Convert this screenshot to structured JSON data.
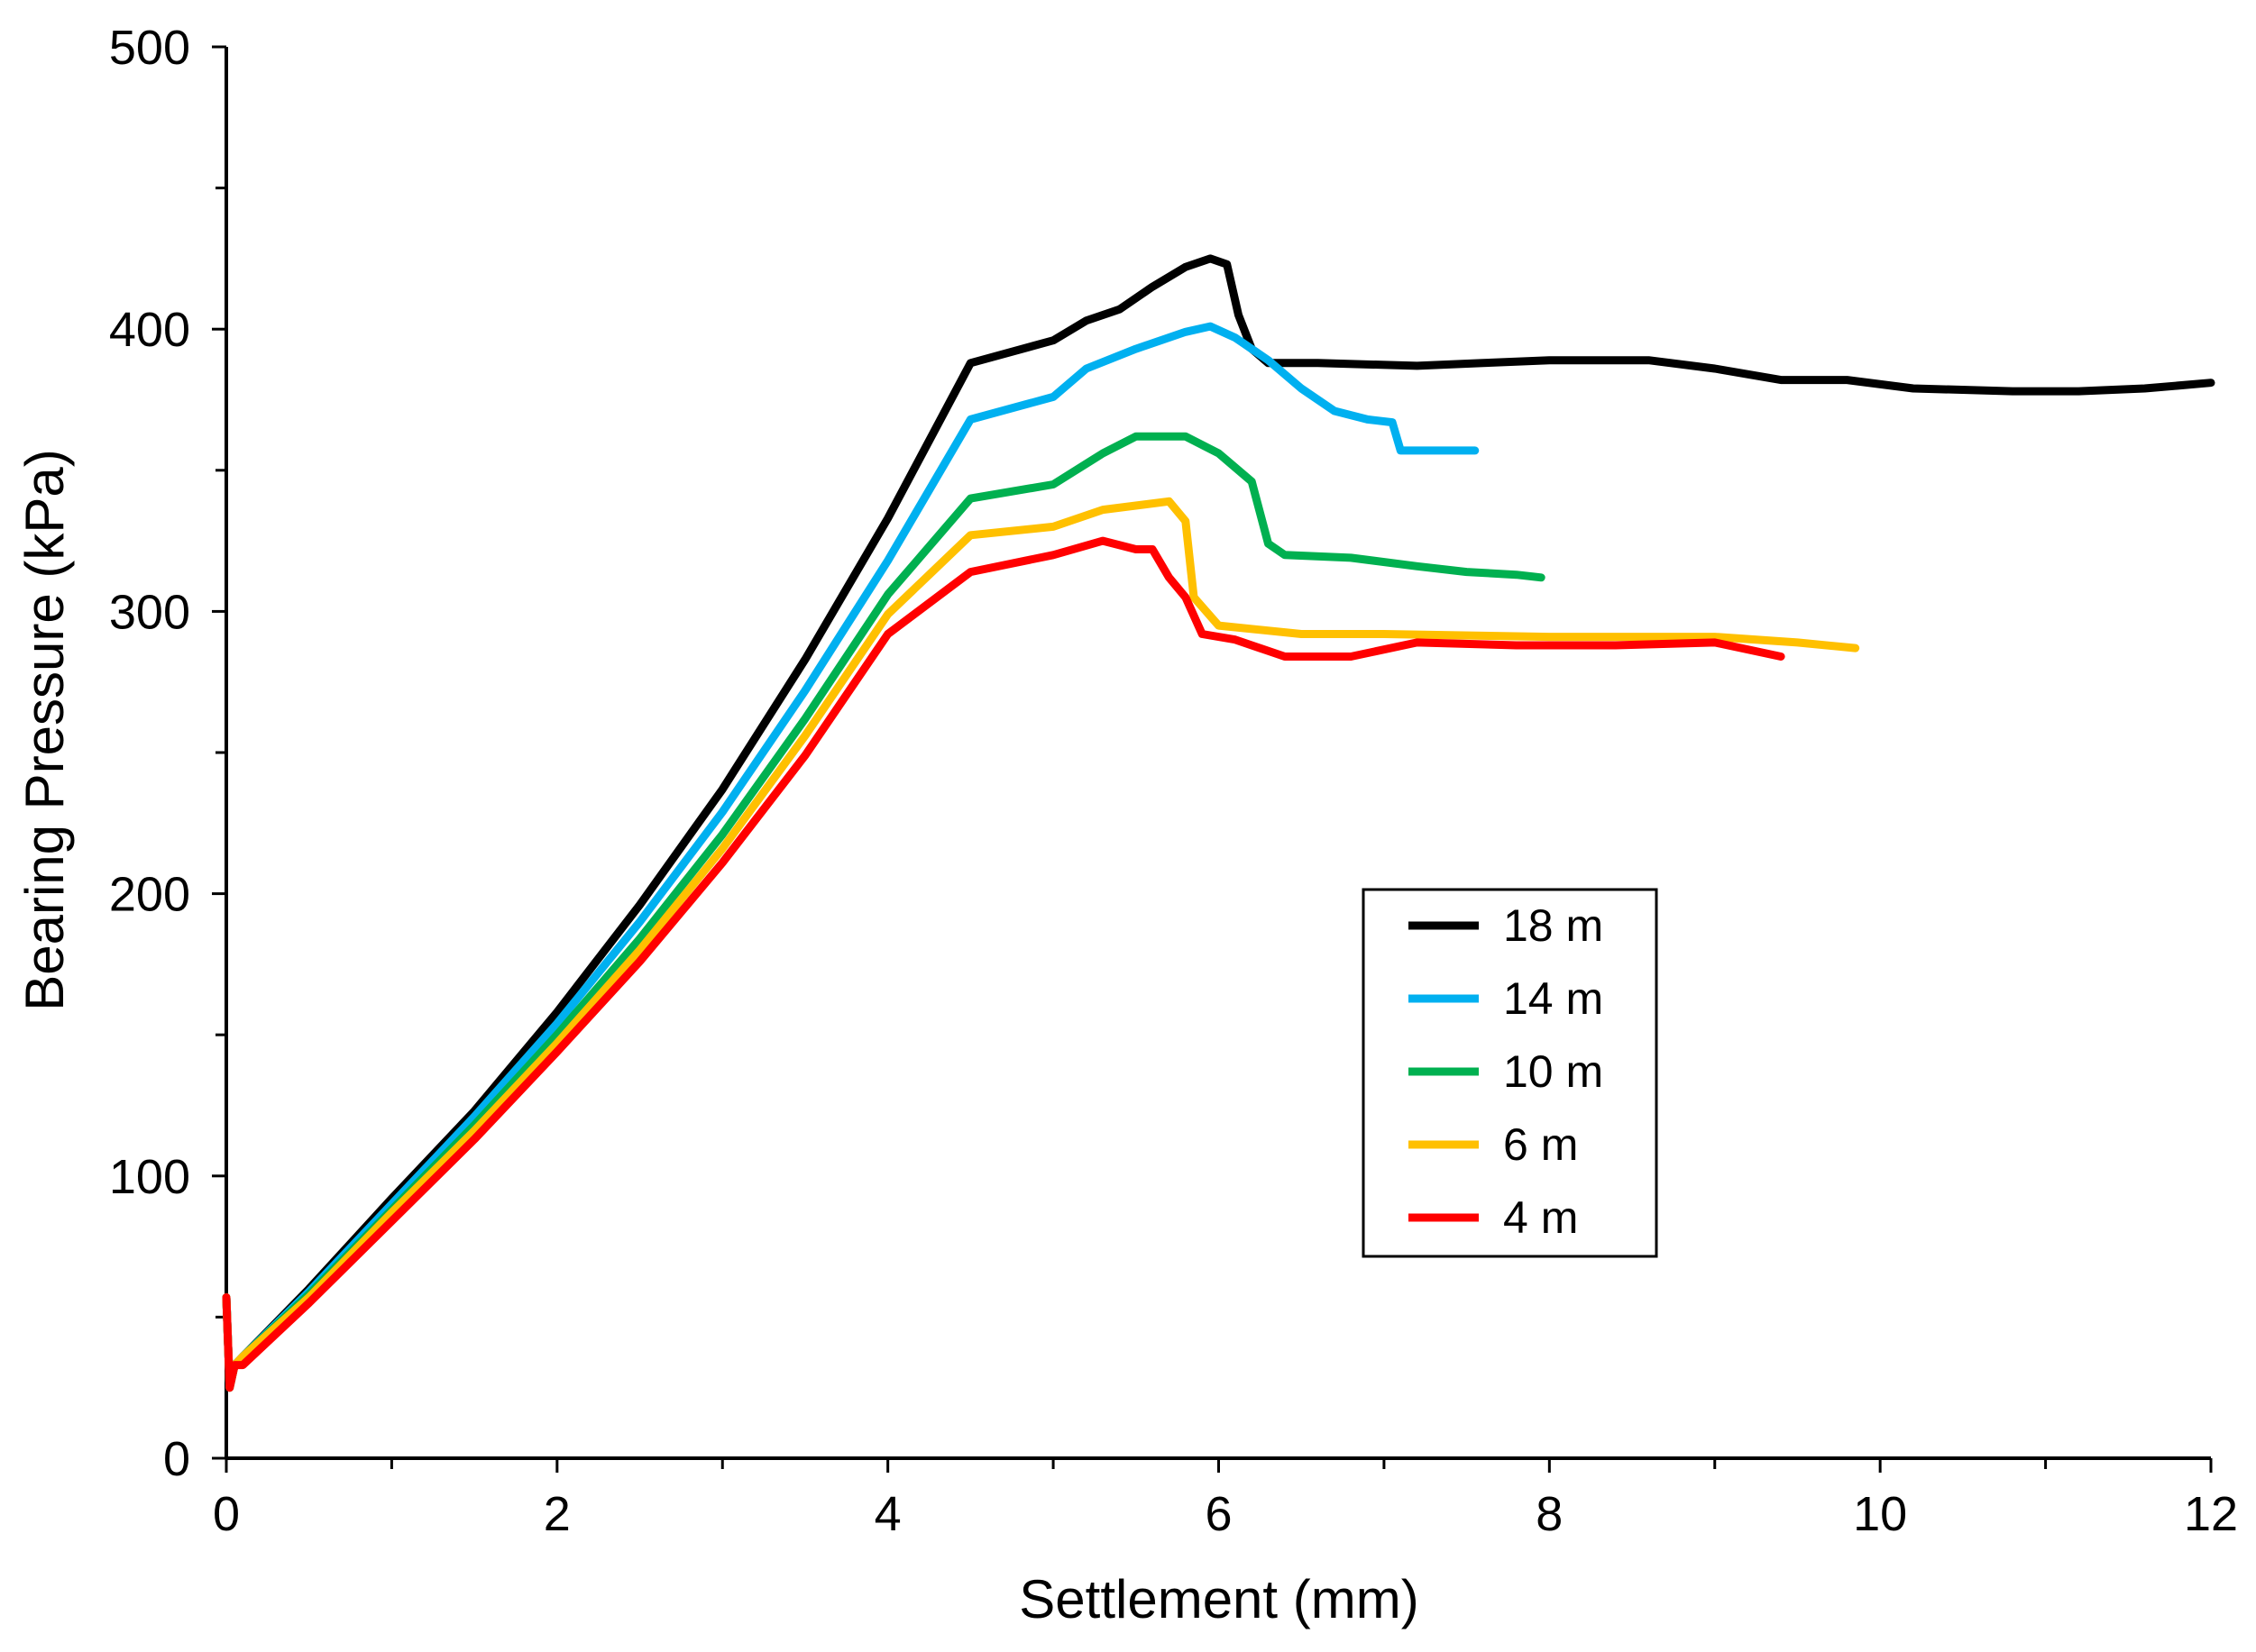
{
  "chart_data": {
    "type": "line",
    "title": "",
    "xlabel": "Settlement (mm)",
    "ylabel": "Bearing Pressure (kPa)",
    "xlim": [
      0,
      12
    ],
    "ylim": [
      0,
      500
    ],
    "xticks": [
      0,
      2,
      4,
      6,
      8,
      10,
      12
    ],
    "yticks": [
      0,
      100,
      200,
      300,
      400,
      500
    ],
    "x_minor_step": 1,
    "y_minor_step": 50,
    "grid": false,
    "legend_position": "center-right",
    "series": [
      {
        "name": "18 m",
        "color": "#000000",
        "points": [
          [
            0,
            57
          ],
          [
            0.02,
            25
          ],
          [
            0.05,
            33
          ],
          [
            0.1,
            36
          ],
          [
            0.5,
            60
          ],
          [
            1,
            92
          ],
          [
            1.5,
            123
          ],
          [
            2,
            158
          ],
          [
            2.5,
            196
          ],
          [
            3,
            237
          ],
          [
            3.5,
            283
          ],
          [
            4,
            333
          ],
          [
            4.5,
            388
          ],
          [
            5,
            396
          ],
          [
            5.2,
            403
          ],
          [
            5.4,
            407
          ],
          [
            5.6,
            415
          ],
          [
            5.8,
            422
          ],
          [
            5.95,
            425
          ],
          [
            6.05,
            423
          ],
          [
            6.12,
            405
          ],
          [
            6.2,
            393
          ],
          [
            6.3,
            388
          ],
          [
            6.6,
            388
          ],
          [
            7.2,
            387
          ],
          [
            7.6,
            388
          ],
          [
            8,
            389
          ],
          [
            8.6,
            389
          ],
          [
            9,
            386
          ],
          [
            9.4,
            382
          ],
          [
            9.8,
            382
          ],
          [
            10.2,
            379
          ],
          [
            10.8,
            378
          ],
          [
            11.2,
            378
          ],
          [
            11.6,
            379
          ],
          [
            12,
            381
          ]
        ]
      },
      {
        "name": "14 m",
        "color": "#00B0F0",
        "points": [
          [
            0,
            57
          ],
          [
            0.02,
            25
          ],
          [
            0.05,
            33
          ],
          [
            0.1,
            36
          ],
          [
            0.5,
            59
          ],
          [
            1,
            90
          ],
          [
            1.5,
            121
          ],
          [
            2,
            154
          ],
          [
            2.5,
            190
          ],
          [
            3,
            229
          ],
          [
            3.5,
            272
          ],
          [
            4,
            318
          ],
          [
            4.5,
            368
          ],
          [
            5,
            376
          ],
          [
            5.2,
            386
          ],
          [
            5.5,
            393
          ],
          [
            5.8,
            399
          ],
          [
            5.95,
            401
          ],
          [
            6.1,
            397
          ],
          [
            6.3,
            389
          ],
          [
            6.5,
            379
          ],
          [
            6.7,
            371
          ],
          [
            6.9,
            368
          ],
          [
            7.05,
            367
          ],
          [
            7.1,
            357
          ],
          [
            7.3,
            357
          ],
          [
            7.55,
            357
          ]
        ]
      },
      {
        "name": "10 m",
        "color": "#00B050",
        "points": [
          [
            0,
            57
          ],
          [
            0.02,
            25
          ],
          [
            0.05,
            33
          ],
          [
            0.1,
            36
          ],
          [
            0.5,
            58
          ],
          [
            1,
            88
          ],
          [
            1.5,
            118
          ],
          [
            2,
            150
          ],
          [
            2.5,
            184
          ],
          [
            3,
            221
          ],
          [
            3.5,
            262
          ],
          [
            4,
            306
          ],
          [
            4.5,
            340
          ],
          [
            5,
            345
          ],
          [
            5.3,
            356
          ],
          [
            5.5,
            362
          ],
          [
            5.8,
            362
          ],
          [
            6,
            356
          ],
          [
            6.2,
            346
          ],
          [
            6.3,
            324
          ],
          [
            6.4,
            320
          ],
          [
            6.8,
            319
          ],
          [
            7.2,
            316
          ],
          [
            7.5,
            314
          ],
          [
            7.8,
            313
          ],
          [
            7.95,
            312
          ]
        ]
      },
      {
        "name": "6 m",
        "color": "#FFC000",
        "points": [
          [
            0,
            57
          ],
          [
            0.02,
            25
          ],
          [
            0.05,
            33
          ],
          [
            0.1,
            36
          ],
          [
            0.5,
            57
          ],
          [
            1,
            87
          ],
          [
            1.5,
            116
          ],
          [
            2,
            147
          ],
          [
            2.5,
            180
          ],
          [
            3,
            216
          ],
          [
            3.5,
            256
          ],
          [
            4,
            299
          ],
          [
            4.5,
            327
          ],
          [
            5,
            330
          ],
          [
            5.3,
            336
          ],
          [
            5.7,
            339
          ],
          [
            5.8,
            332
          ],
          [
            5.85,
            305
          ],
          [
            6,
            295
          ],
          [
            6.5,
            292
          ],
          [
            7,
            292
          ],
          [
            8,
            291
          ],
          [
            9,
            291
          ],
          [
            9.5,
            289
          ],
          [
            9.85,
            287
          ]
        ]
      },
      {
        "name": "4 m",
        "color": "#FF0000",
        "points": [
          [
            0,
            57
          ],
          [
            0.02,
            25
          ],
          [
            0.05,
            33
          ],
          [
            0.1,
            33
          ],
          [
            0.5,
            55
          ],
          [
            1,
            84
          ],
          [
            1.5,
            113
          ],
          [
            2,
            144
          ],
          [
            2.5,
            176
          ],
          [
            3,
            211
          ],
          [
            3.5,
            249
          ],
          [
            4,
            292
          ],
          [
            4.5,
            314
          ],
          [
            5,
            320
          ],
          [
            5.3,
            325
          ],
          [
            5.5,
            322
          ],
          [
            5.6,
            322
          ],
          [
            5.7,
            312
          ],
          [
            5.8,
            305
          ],
          [
            5.9,
            292
          ],
          [
            6.1,
            290
          ],
          [
            6.4,
            284
          ],
          [
            6.8,
            284
          ],
          [
            7.2,
            289
          ],
          [
            7.8,
            288
          ],
          [
            8.4,
            288
          ],
          [
            9,
            289
          ],
          [
            9.4,
            284
          ]
        ]
      }
    ]
  }
}
